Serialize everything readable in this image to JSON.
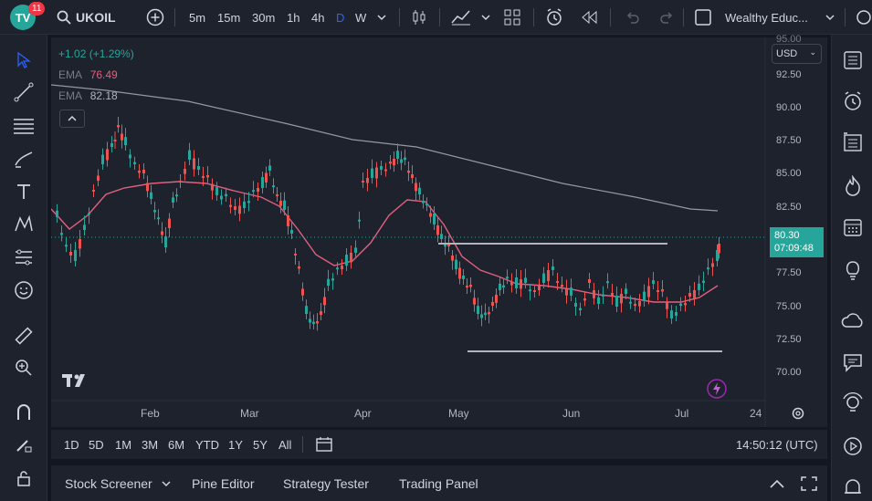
{
  "toolbar": {
    "logo_text": "TV",
    "notification_count": "11",
    "symbol": "UKOIL",
    "intervals": [
      "5m",
      "15m",
      "30m",
      "1h",
      "4h",
      "D",
      "W"
    ],
    "active_interval": "D",
    "layout_name": "Wealthy Educ..."
  },
  "legend": {
    "change": "+1.02 (+1.29%)",
    "ema1_label": "EMA",
    "ema1_value": "76.49",
    "ema2_label": "EMA",
    "ema2_value": "82.18"
  },
  "price_axis": {
    "currency": "USD",
    "labels": [
      "92.50",
      "90.00",
      "87.50",
      "85.00",
      "82.50",
      "77.50",
      "75.00",
      "72.50",
      "70.00"
    ],
    "top_partial_label": "95.00",
    "current_price": "80.30",
    "countdown": "07:09:48"
  },
  "time_axis": {
    "labels": [
      "Feb",
      "Mar",
      "Apr",
      "May",
      "Jun",
      "Jul",
      "24"
    ]
  },
  "range_bar": {
    "ranges": [
      "1D",
      "5D",
      "1M",
      "3M",
      "6M",
      "YTD",
      "1Y",
      "5Y",
      "All"
    ],
    "clock": "14:50:12 (UTC)"
  },
  "bottom_panel": {
    "tabs": [
      "Stock Screener",
      "Pine Editor",
      "Strategy Tester",
      "Trading Panel"
    ]
  },
  "colors": {
    "up": "#26a69a",
    "down": "#ef5350",
    "ema_fast": "#e0607e",
    "ema_slow": "#9598a1",
    "accent": "#2962ff"
  }
}
